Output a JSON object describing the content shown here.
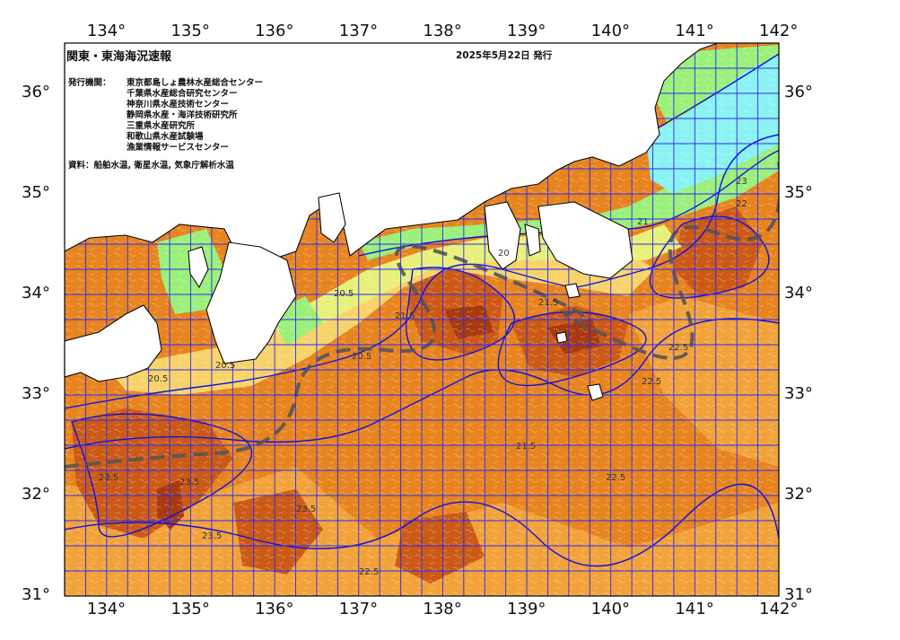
{
  "map": {
    "title": "関東・東海海況速報",
    "issue_date": "2025年5月22日 発行",
    "issuers_label": "発行機関：",
    "issuers": [
      "東京都島しょ農林水産総合センター",
      "千葉県水産総合研究センター",
      "神奈川県水産技術センター",
      "静岡県水産・海洋技術研究所",
      "三重県水産研究所",
      "和歌山県水産試験場",
      "漁業情報サービスセンター"
    ],
    "source_note": "資料：船舶水温, 衛星水温, 気象庁解析水温",
    "lon_labels": [
      "134°",
      "135°",
      "136°",
      "137°",
      "138°",
      "139°",
      "140°",
      "141°",
      "142°"
    ],
    "lat_labels": [
      "36°",
      "35°",
      "34°",
      "33°",
      "32°",
      "31°"
    ],
    "lon_range": [
      133.5,
      142
    ],
    "lat_range": [
      31,
      36.5
    ],
    "contour_labels": [
      "20.5",
      "20.5",
      "20.5",
      "20.5",
      "21.5",
      "21.5",
      "21.5",
      "22.5",
      "22.5",
      "22.5",
      "22.5",
      "23.5",
      "23.5",
      "23.5",
      "23.5",
      "23",
      "22",
      "21",
      "20"
    ],
    "colors": {
      "land": "#ffffff",
      "coast": "#0a0a0a",
      "grid": "#2a2af0",
      "isotherm": "#1010e0",
      "kuroshio_axis": "#555555",
      "sst_cold": "#8af2f2",
      "sst_cool": "#9af07a",
      "sst_mild": "#e8f07a",
      "sst_warm": "#f7d36a",
      "sst_orange": "#f2a23a",
      "sst_hot": "#e0781e",
      "sst_hotter": "#cc5a16",
      "sst_hottest": "#a83a10"
    }
  }
}
